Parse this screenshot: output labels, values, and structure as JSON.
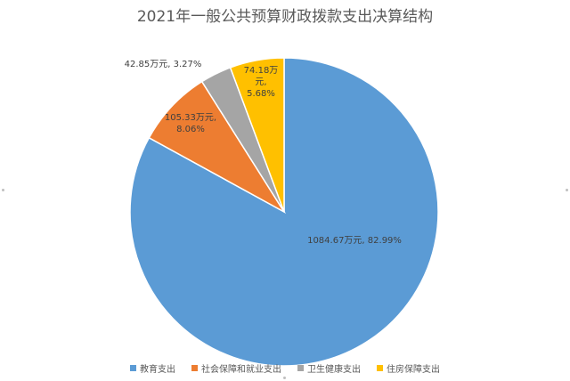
{
  "chart_data": {
    "type": "pie",
    "title": "2021年一般公共预算财政拨款支出决算结构",
    "slices": [
      {
        "name": "教育支出",
        "value": 1084.67,
        "label_value": "1084.67万元,",
        "label_percent": "82.99%",
        "percent": 82.99,
        "color": "#5b9bd5"
      },
      {
        "name": "社会保障和就业支出",
        "value": 105.33,
        "label_value": "105.33万元,",
        "label_percent": "8.06%",
        "percent": 8.06,
        "color": "#ed7d31"
      },
      {
        "name": "卫生健康支出",
        "value": 42.85,
        "label_value": "42.85万元,",
        "label_percent": "3.27%",
        "percent": 3.27,
        "color": "#a5a5a5"
      },
      {
        "name": "住房保障支出",
        "value": 74.18,
        "label_value": "74.18万",
        "label_value2": "元,",
        "label_percent": "5.68%",
        "percent": 5.68,
        "color": "#ffc000"
      }
    ],
    "legend_position": "bottom",
    "start_angle": "12 o'clock, clockwise"
  },
  "legend": [
    {
      "label": "教育支出",
      "color": "#5b9bd5"
    },
    {
      "label": "社会保障和就业支出",
      "color": "#ed7d31"
    },
    {
      "label": "卫生健康支出",
      "color": "#a5a5a5"
    },
    {
      "label": "住房保障支出",
      "color": "#ffc000"
    }
  ]
}
